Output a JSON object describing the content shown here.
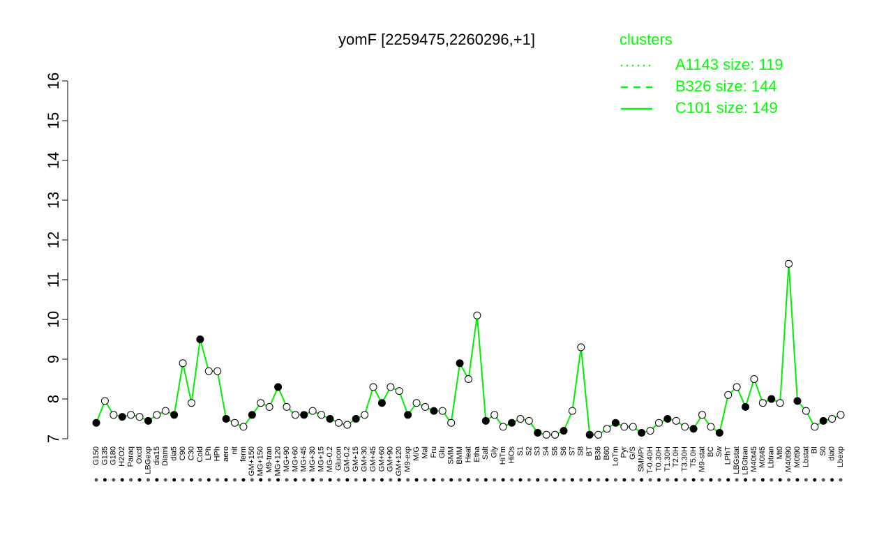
{
  "chart_data": {
    "type": "line",
    "title": "yomF [2259475,2260296,+1]",
    "categories": [
      "G150",
      "G135",
      "G180",
      "H2O2",
      "Paraq",
      "Oxctl",
      "LBGexp",
      "dia15",
      "Diami",
      "dia5",
      "C90",
      "C30",
      "Cold",
      "LPh",
      "HPh",
      "aero",
      "nit",
      "ferm",
      "GM+150",
      "MG+150",
      "M9-tran",
      "MG+120",
      "MG+90",
      "MG+60",
      "MG+45",
      "MG+30",
      "MG+15",
      "MG-0.2",
      "Glucon",
      "GM-0.2",
      "GM+15",
      "GM+30",
      "GM+45",
      "GM+60",
      "GM+90",
      "GM+120",
      "M9-exp",
      "M/G",
      "Mal",
      "Fru",
      "Glu",
      "SMM",
      "BMM",
      "Heat",
      "Etha",
      "Salt",
      "Gly",
      "HiTm",
      "HiOs",
      "S1",
      "S2",
      "S3",
      "S4",
      "S5",
      "S6",
      "S7",
      "S8",
      "BT",
      "B36",
      "B60",
      "LoTm",
      "Pyr",
      "G/S",
      "SMMPr",
      "T-0.40H",
      "T0.30H",
      "T1.30H",
      "T2.0H",
      "T3.30H",
      "T5.0H",
      "M9-stat",
      "BC",
      "Sw",
      "LPhT",
      "LBGstat",
      "LBGtran",
      "M40t45",
      "M0t45",
      "Lbtran",
      "Mt0",
      "M40t90",
      "M0t90",
      "Lbstat",
      "BI",
      "S0",
      "dia0",
      "Lbexp"
    ],
    "series": [
      {
        "name": "C101 size: 149",
        "color": "#00ee00",
        "values": [
          7.4,
          7.95,
          7.6,
          7.55,
          7.6,
          7.55,
          7.45,
          7.6,
          7.7,
          7.6,
          8.9,
          7.9,
          9.5,
          8.7,
          8.7,
          7.5,
          7.4,
          7.3,
          7.6,
          7.9,
          7.8,
          8.3,
          7.8,
          7.6,
          7.6,
          7.7,
          7.6,
          7.5,
          7.4,
          7.35,
          7.5,
          7.6,
          8.3,
          7.9,
          8.3,
          8.2,
          7.6,
          7.9,
          7.8,
          7.7,
          7.7,
          7.4,
          8.9,
          8.5,
          10.1,
          7.45,
          7.6,
          7.3,
          7.4,
          7.5,
          7.45,
          7.15,
          7.1,
          7.1,
          7.2,
          7.7,
          9.3,
          7.1,
          7.1,
          7.25,
          7.4,
          7.3,
          7.3,
          7.15,
          7.2,
          7.4,
          7.5,
          7.45,
          7.3,
          7.25,
          7.6,
          7.3,
          7.15,
          8.1,
          8.3,
          7.8,
          8.5,
          7.9,
          8.0,
          7.9,
          11.4,
          7.95,
          7.7,
          7.3,
          7.45,
          7.5,
          7.6
        ]
      }
    ],
    "ylim": [
      7,
      16
    ],
    "yticks": [
      7,
      8,
      9,
      10,
      11,
      12,
      13,
      14,
      15,
      16
    ],
    "legend": {
      "title": "clusters",
      "color": "#00ff00",
      "entries": [
        {
          "name": "A1143 size: 119",
          "dash": "2,6"
        },
        {
          "name": "B326 size: 144",
          "dash": "10,8"
        },
        {
          "name": "C101 size: 149",
          "dash": "none"
        }
      ]
    }
  }
}
